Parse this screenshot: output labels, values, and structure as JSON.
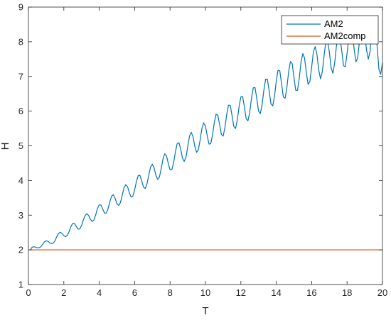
{
  "chart_data": {
    "type": "line",
    "xlabel": "T",
    "ylabel": "H",
    "xlim": [
      0,
      20
    ],
    "ylim": [
      1,
      9
    ],
    "xticks": [
      0,
      2,
      4,
      6,
      8,
      10,
      12,
      14,
      16,
      18,
      20
    ],
    "yticks": [
      1,
      2,
      3,
      4,
      5,
      6,
      7,
      8,
      9
    ],
    "legend_position": "top-right",
    "grid": false,
    "series": [
      {
        "name": "AM2",
        "color": "#0072BD",
        "x": [
          0,
          0.1,
          0.2,
          0.3,
          0.4,
          0.5,
          0.6,
          0.7,
          0.8,
          0.9,
          1.0,
          1.1,
          1.2,
          1.3,
          1.4,
          1.5,
          1.6,
          1.7,
          1.8,
          1.9,
          2.0,
          2.1,
          2.2,
          2.3,
          2.4,
          2.5,
          2.6,
          2.7,
          2.8,
          2.9,
          3.0,
          3.1,
          3.2,
          3.3,
          3.4,
          3.5,
          3.6,
          3.7,
          3.8,
          3.9,
          4.0,
          4.1,
          4.2,
          4.3,
          4.4,
          4.5,
          4.6,
          4.7,
          4.8,
          4.9,
          5.0,
          5.1,
          5.2,
          5.3,
          5.4,
          5.5,
          5.6,
          5.7,
          5.8,
          5.9,
          6.0,
          6.1,
          6.2,
          6.3,
          6.4,
          6.5,
          6.6,
          6.7,
          6.8,
          6.9,
          7.0,
          7.1,
          7.2,
          7.3,
          7.4,
          7.5,
          7.6,
          7.7,
          7.8,
          7.9,
          8.0,
          8.1,
          8.2,
          8.3,
          8.4,
          8.5,
          8.6,
          8.7,
          8.8,
          8.9,
          9.0,
          9.1,
          9.2,
          9.3,
          9.4,
          9.5,
          9.6,
          9.7,
          9.8,
          9.9,
          10.0,
          10.1,
          10.2,
          10.3,
          10.4,
          10.5,
          10.6,
          10.7,
          10.8,
          10.9,
          11.0,
          11.1,
          11.2,
          11.3,
          11.4,
          11.5,
          11.6,
          11.7,
          11.8,
          11.9,
          12.0,
          12.1,
          12.2,
          12.3,
          12.4,
          12.5,
          12.6,
          12.7,
          12.8,
          12.9,
          13.0,
          13.1,
          13.2,
          13.3,
          13.4,
          13.5,
          13.6,
          13.7,
          13.8,
          13.9,
          14.0,
          14.1,
          14.2,
          14.3,
          14.4,
          14.5,
          14.6,
          14.7,
          14.8,
          14.9,
          15.0,
          15.1,
          15.2,
          15.3,
          15.4,
          15.5,
          15.6,
          15.7,
          15.8,
          15.9,
          16.0,
          16.1,
          16.2,
          16.3,
          16.4,
          16.5,
          16.6,
          16.7,
          16.8,
          16.9,
          17.0,
          17.1,
          17.2,
          17.3,
          17.4,
          17.5,
          17.6,
          17.7,
          17.8,
          17.9,
          18.0,
          18.1,
          18.2,
          18.3,
          18.4,
          18.5,
          18.6,
          18.7,
          18.8,
          18.9,
          19.0,
          19.1,
          19.2,
          19.3,
          19.4,
          19.5,
          19.6,
          19.7,
          19.8,
          19.9,
          20.0
        ],
        "y": [
          2.0,
          2.0,
          2.07,
          2.09,
          2.08,
          2.06,
          2.06,
          2.09,
          2.16,
          2.23,
          2.26,
          2.25,
          2.2,
          2.18,
          2.19,
          2.26,
          2.38,
          2.47,
          2.51,
          2.47,
          2.41,
          2.38,
          2.42,
          2.53,
          2.67,
          2.76,
          2.76,
          2.68,
          2.6,
          2.6,
          2.7,
          2.86,
          2.99,
          3.04,
          2.99,
          2.88,
          2.82,
          2.86,
          3.01,
          3.19,
          3.3,
          3.29,
          3.17,
          3.06,
          3.06,
          3.19,
          3.39,
          3.55,
          3.59,
          3.48,
          3.33,
          3.28,
          3.37,
          3.58,
          3.79,
          3.88,
          3.82,
          3.65,
          3.52,
          3.55,
          3.73,
          3.97,
          4.14,
          4.15,
          3.99,
          3.81,
          3.77,
          3.91,
          4.16,
          4.39,
          4.47,
          4.36,
          4.15,
          4.03,
          4.1,
          4.34,
          4.62,
          4.77,
          4.71,
          4.49,
          4.31,
          4.31,
          4.51,
          4.82,
          5.06,
          5.09,
          4.91,
          4.65,
          4.55,
          4.67,
          4.98,
          5.28,
          5.39,
          5.26,
          4.98,
          4.81,
          4.89,
          5.17,
          5.5,
          5.66,
          5.57,
          5.29,
          5.05,
          5.06,
          5.32,
          5.67,
          5.91,
          5.88,
          5.61,
          5.33,
          5.28,
          5.53,
          5.9,
          6.17,
          6.17,
          5.88,
          5.56,
          5.5,
          5.74,
          6.13,
          6.41,
          6.42,
          6.12,
          5.78,
          5.72,
          5.96,
          6.37,
          6.67,
          6.68,
          6.36,
          6.0,
          5.93,
          6.19,
          6.61,
          6.92,
          6.92,
          6.58,
          6.21,
          6.15,
          6.42,
          6.87,
          7.18,
          7.16,
          6.79,
          6.41,
          6.37,
          6.68,
          7.14,
          7.43,
          7.37,
          6.97,
          6.6,
          6.6,
          6.95,
          7.42,
          7.66,
          7.53,
          7.1,
          6.77,
          6.86,
          7.27,
          7.72,
          7.86,
          7.63,
          7.19,
          6.93,
          7.13,
          7.59,
          8.0,
          8.02,
          7.7,
          7.25,
          7.09,
          7.39,
          7.88,
          8.21,
          8.13,
          7.74,
          7.31,
          7.28,
          7.66,
          8.16,
          8.4,
          8.21,
          7.79,
          7.42,
          7.54,
          8.01,
          8.45,
          8.53,
          8.22,
          7.76,
          7.5,
          7.72,
          8.28,
          8.67,
          8.48,
          7.86,
          7.2,
          7.06,
          7.4
        ]
      },
      {
        "name": "AM2comp",
        "color": "#D95319",
        "x": [
          0,
          20
        ],
        "y": [
          2,
          2
        ]
      }
    ]
  }
}
